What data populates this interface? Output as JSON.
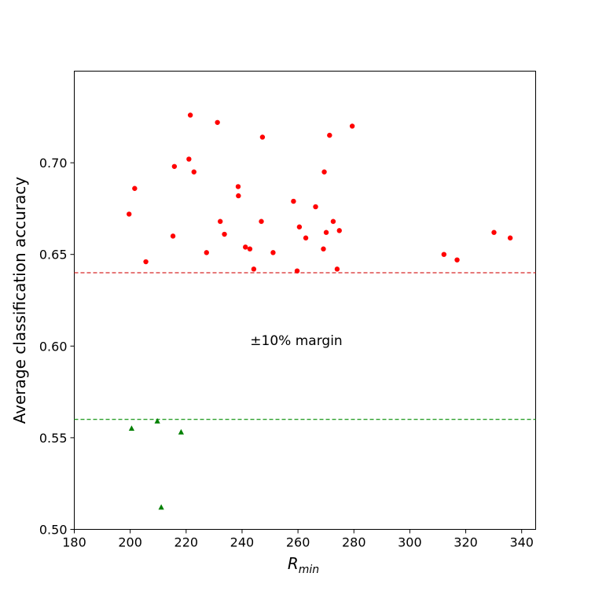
{
  "chart_data": {
    "type": "scatter",
    "xlabel": "R",
    "xlabel_sub": "min",
    "ylabel": "Average classification accuracy",
    "xlim": [
      180,
      345
    ],
    "ylim": [
      0.5,
      0.75
    ],
    "xticks": [
      180,
      200,
      220,
      240,
      260,
      280,
      300,
      320,
      340
    ],
    "xtick_labels": [
      "180",
      "200",
      "220",
      "240",
      "260",
      "280",
      "300",
      "320",
      "340"
    ],
    "yticks": [
      0.5,
      0.55,
      0.6,
      0.65,
      0.7
    ],
    "ytick_labels": [
      "0.50",
      "0.55",
      "0.60",
      "0.65",
      "0.70"
    ],
    "grid": false,
    "annotation": "±10% margin",
    "hlines": [
      {
        "y": 0.64,
        "color": "#d62728",
        "style": "dashed"
      },
      {
        "y": 0.56,
        "color": "#2ca02c",
        "style": "dashed"
      }
    ],
    "series": [
      {
        "marker": "circle",
        "color": "#ff0000",
        "points": [
          [
            199.6,
            0.672
          ],
          [
            201.6,
            0.686
          ],
          [
            205.6,
            0.646
          ],
          [
            215.3,
            0.66
          ],
          [
            215.8,
            0.698
          ],
          [
            221.0,
            0.702
          ],
          [
            221.5,
            0.726
          ],
          [
            222.8,
            0.695
          ],
          [
            227.3,
            0.651
          ],
          [
            231.2,
            0.722
          ],
          [
            232.2,
            0.668
          ],
          [
            233.7,
            0.661
          ],
          [
            238.6,
            0.687
          ],
          [
            238.7,
            0.682
          ],
          [
            241.2,
            0.654
          ],
          [
            242.8,
            0.653
          ],
          [
            244.2,
            0.642
          ],
          [
            246.9,
            0.668
          ],
          [
            247.3,
            0.714
          ],
          [
            251.1,
            0.651
          ],
          [
            258.4,
            0.679
          ],
          [
            259.7,
            0.641
          ],
          [
            260.5,
            0.665
          ],
          [
            262.8,
            0.659
          ],
          [
            266.3,
            0.676
          ],
          [
            269.1,
            0.653
          ],
          [
            269.4,
            0.695
          ],
          [
            270.1,
            0.662
          ],
          [
            271.3,
            0.715
          ],
          [
            272.6,
            0.668
          ],
          [
            274.0,
            0.642
          ],
          [
            274.8,
            0.663
          ],
          [
            279.4,
            0.72
          ],
          [
            312.2,
            0.65
          ],
          [
            316.9,
            0.647
          ],
          [
            330.1,
            0.662
          ],
          [
            335.9,
            0.659
          ]
        ]
      },
      {
        "marker": "triangle",
        "color": "#008000",
        "points": [
          [
            200.5,
            0.555
          ],
          [
            209.7,
            0.559
          ],
          [
            211.1,
            0.512
          ],
          [
            218.2,
            0.553
          ]
        ]
      }
    ]
  }
}
